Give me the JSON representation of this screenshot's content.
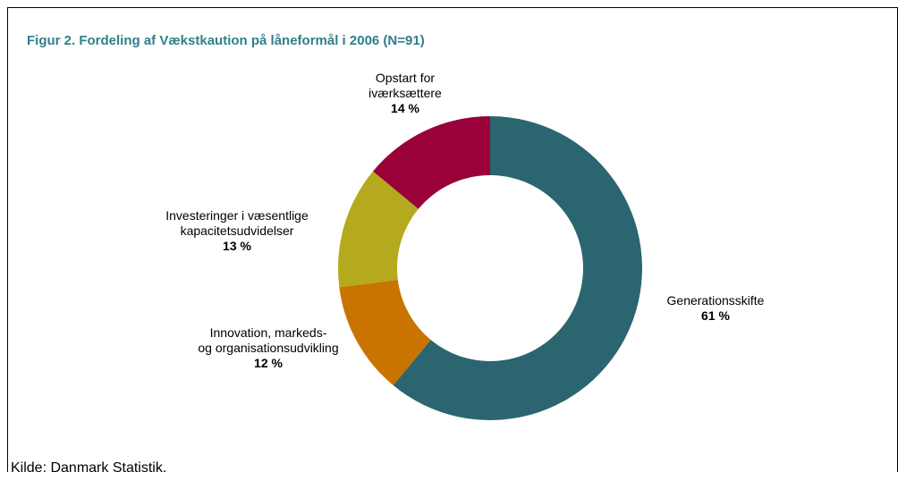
{
  "chart_data": {
    "type": "donut",
    "title": "Figur 2. Fordeling af Vækstkaution på låneformål i 2006 (N=91)",
    "categories": [
      "Generationsskifte",
      "Innovation, markeds-\nog organisationsudvikling",
      "Investeringer i væsentlige\nkapacitetsudvidelser",
      "Opstart for\niværksættere"
    ],
    "values": [
      61,
      12,
      13,
      14
    ],
    "value_labels": [
      "61 %",
      "12 %",
      "13 %",
      "14 %"
    ],
    "colors": [
      "#2b6570",
      "#c97400",
      "#b5a91e",
      "#9a0039"
    ],
    "source": "Kilde: Danmark Statistik."
  }
}
